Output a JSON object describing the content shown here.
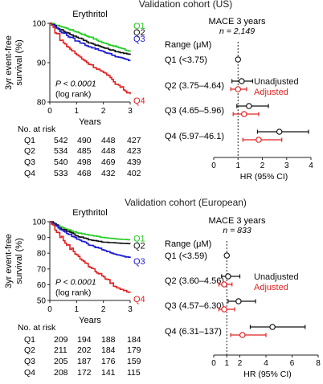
{
  "colors": {
    "Q1": "#22cc22",
    "Q2": "#111111",
    "Q3": "#1a1ad6",
    "Q4": "#e32020",
    "unadjusted": "#111111",
    "adjusted": "#e32020"
  },
  "chart_data": [
    {
      "panel": "Validation cohort (US)",
      "km": {
        "type": "line",
        "title": "Erythritol",
        "ylabel": "3yr event-free survival (%)",
        "ylabel_lines": [
          "3yr event-free",
          "survival (%)"
        ],
        "xlabel": "Years",
        "xlim": [
          0,
          3
        ],
        "ylim": [
          80,
          100
        ],
        "xticks": [
          0,
          1,
          2,
          3
        ],
        "yticks": [
          80,
          90,
          100
        ],
        "pvalue": [
          "P < 0.0001",
          "(log rank)"
        ],
        "series": [
          {
            "name": "Q1",
            "end_label": "Q1",
            "x": [
              0,
              0.5,
              1,
              1.5,
              2,
              2.5,
              3
            ],
            "y": [
              100,
              99,
              97.8,
              96.5,
              95,
              94,
              92.8
            ]
          },
          {
            "name": "Q2",
            "end_label": "Q2",
            "x": [
              0,
              0.5,
              1,
              1.5,
              2,
              2.5,
              3
            ],
            "y": [
              100,
              98,
              96.5,
              95,
              93.8,
              92.8,
              92
            ]
          },
          {
            "name": "Q3",
            "end_label": "Q3",
            "x": [
              0,
              0.5,
              1,
              1.5,
              2,
              2.5,
              3
            ],
            "y": [
              100,
              97.5,
              95.5,
              94,
              92.8,
              91.5,
              90.5
            ]
          },
          {
            "name": "Q4",
            "end_label": "Q4",
            "x": [
              0,
              0.5,
              1,
              1.5,
              2,
              2.5,
              3
            ],
            "y": [
              100,
              95,
              92,
              89.5,
              87.5,
              84.5,
              82
            ]
          }
        ]
      },
      "risk_table": {
        "title": "No. at risk",
        "rows": [
          {
            "label": "Q1",
            "values": [
              "542",
              "490",
              "448",
              "427"
            ]
          },
          {
            "label": "Q2",
            "values": [
              "534",
              "485",
              "448",
              "423"
            ]
          },
          {
            "label": "Q3",
            "values": [
              "540",
              "498",
              "469",
              "439"
            ]
          },
          {
            "label": "Q4",
            "values": [
              "533",
              "468",
              "432",
              "402"
            ]
          }
        ]
      },
      "forest": {
        "type": "scatter",
        "title": "MACE 3 years",
        "n_label": "n = 2,149",
        "range_label": "Range (μM)",
        "xlabel": "HR (95% CI)",
        "xlim": [
          0,
          4
        ],
        "xticks": [
          0,
          1,
          2,
          3,
          4
        ],
        "legend": [
          "Unadjusted",
          "Adjusted"
        ],
        "rows": [
          {
            "label": "Q1 (<3.75)",
            "reference": true,
            "hr": 1
          },
          {
            "label": "Q2 (3.75–4.64)",
            "unadj": [
              1.15,
              0.75,
              1.6
            ],
            "adj": [
              1.0,
              0.7,
              1.35
            ]
          },
          {
            "label": "Q3 (4.65–5.96)",
            "unadj": [
              1.45,
              0.95,
              2.25
            ],
            "adj": [
              1.25,
              0.8,
              1.85
            ]
          },
          {
            "label": "Q4 (5.97–46.1)",
            "unadj": [
              2.7,
              1.8,
              3.9
            ],
            "adj": [
              1.85,
              1.2,
              2.8
            ]
          }
        ]
      }
    },
    {
      "panel": "Validation cohort (European)",
      "km": {
        "type": "line",
        "title": "Erythritol",
        "ylabel": "3yr event-free survival (%)",
        "ylabel_lines": [
          "3yr event-free",
          "survival (%)"
        ],
        "xlabel": "Years",
        "xlim": [
          0,
          3
        ],
        "ylim": [
          50,
          100
        ],
        "xticks": [
          0,
          1,
          2,
          3
        ],
        "yticks": [
          50,
          60,
          70,
          80,
          90,
          100
        ],
        "pvalue": [
          "P < 0.0001",
          "(log rank)"
        ],
        "series": [
          {
            "name": "Q1",
            "end_label": "Q1",
            "x": [
              0,
              0.5,
              1,
              1.5,
              2,
              2.5,
              3
            ],
            "y": [
              100,
              96,
              93,
              91.5,
              90,
              89,
              88.5
            ]
          },
          {
            "name": "Q2",
            "end_label": "Q2",
            "x": [
              0,
              0.5,
              1,
              1.5,
              2,
              2.5,
              3
            ],
            "y": [
              100,
              95,
              91,
              88.5,
              87,
              86.5,
              86
            ]
          },
          {
            "name": "Q3",
            "end_label": "Q3",
            "x": [
              0,
              0.5,
              1,
              1.5,
              2,
              2.5,
              3
            ],
            "y": [
              100,
              94,
              89,
              85,
              82,
              79,
              77
            ]
          },
          {
            "name": "Q4",
            "end_label": "Q4",
            "x": [
              0,
              0.5,
              1,
              1.5,
              2,
              2.5,
              3
            ],
            "y": [
              100,
              88,
              79,
              71,
              65,
              58,
              55
            ]
          }
        ]
      },
      "risk_table": {
        "title": "No. at risk",
        "rows": [
          {
            "label": "Q1",
            "values": [
              "209",
              "194",
              "188",
              "184"
            ]
          },
          {
            "label": "Q2",
            "values": [
              "211",
              "202",
              "184",
              "179"
            ]
          },
          {
            "label": "Q3",
            "values": [
              "205",
              "187",
              "176",
              "159"
            ]
          },
          {
            "label": "Q4",
            "values": [
              "208",
              "172",
              "141",
              "115"
            ]
          }
        ]
      },
      "forest": {
        "type": "scatter",
        "title": "MACE 3 years",
        "n_label": "n = 833",
        "range_label": "Range (μM)",
        "xlabel": "HR (95% CI)",
        "xlim": [
          0,
          8
        ],
        "xticks": [
          0,
          1,
          2,
          4,
          6,
          8
        ],
        "legend": [
          "Unadjusted",
          "Adjusted"
        ],
        "rows": [
          {
            "label": "Q1 (<3.59)",
            "reference": true,
            "hr": 1
          },
          {
            "label": "Q2 (3.60–4.56)",
            "unadj": [
              1.1,
              0.6,
              2.0
            ],
            "adj": [
              0.8,
              0.4,
              1.4
            ]
          },
          {
            "label": "Q3 (4.57–6.30)",
            "unadj": [
              1.9,
              1.1,
              3.2
            ],
            "adj": [
              0.8,
              0.4,
              1.6
            ]
          },
          {
            "label": "Q4 (6.31–137)",
            "unadj": [
              4.5,
              2.8,
              7.0
            ],
            "adj": [
              2.2,
              1.3,
              4.0
            ]
          }
        ]
      }
    }
  ]
}
